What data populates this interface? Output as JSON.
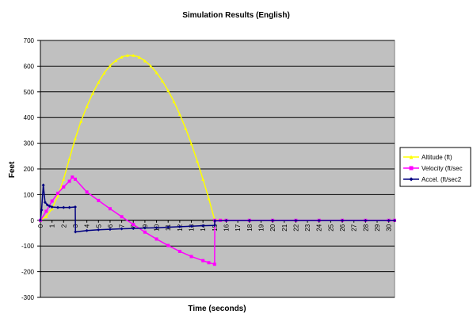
{
  "chart_data": {
    "type": "line",
    "title": "Simulation Results (English)",
    "xlabel": "Time (seconds)",
    "ylabel": "Feet",
    "xlim": [
      0,
      30.5
    ],
    "ylim": [
      -300,
      700
    ],
    "y_ticks": [
      -300,
      -200,
      -100,
      0,
      100,
      200,
      300,
      400,
      500,
      600,
      700
    ],
    "x_tick_labels": [
      "0",
      "1",
      "2",
      "3",
      "4",
      "5",
      "6",
      "7",
      "8",
      "9",
      "10",
      "11",
      "12",
      "13",
      "14",
      "15",
      "16",
      "17",
      "18",
      "19",
      "20",
      "21",
      "22",
      "23",
      "24",
      "25",
      "26",
      "27",
      "28",
      "29",
      "30"
    ],
    "grid": true,
    "legend_position": "right",
    "plot_background": "#C0C0C0",
    "series": [
      {
        "name": "Altitude (ft)",
        "color": "#FFFF00",
        "marker": "triangle",
        "x": [
          0,
          0.5,
          1,
          1.5,
          2,
          2.5,
          3,
          3.5,
          4,
          4.5,
          5,
          5.5,
          6,
          6.5,
          7,
          7.5,
          8,
          8.5,
          9,
          9.5,
          10,
          10.5,
          11,
          11.5,
          12,
          12.5,
          13,
          13.5,
          14,
          14.5,
          15,
          16,
          18,
          20,
          22,
          24,
          26,
          28,
          30,
          30.5
        ],
        "values": [
          0,
          15,
          45,
          95,
          160,
          240,
          318,
          386,
          443,
          494,
          537,
          574,
          602,
          622,
          636,
          642,
          642,
          635,
          621,
          601,
          575,
          543,
          505,
          462,
          413,
          358,
          298,
          231,
          160,
          85,
          2,
          0,
          0,
          0,
          0,
          0,
          0,
          0,
          0,
          0
        ]
      },
      {
        "name": "Velocity (ft/sec",
        "color": "#FF00FF",
        "marker": "square",
        "x": [
          0,
          0.5,
          1,
          1.5,
          2,
          2.5,
          2.75,
          3,
          4,
          5,
          6,
          7,
          8,
          9,
          10,
          11,
          12,
          13,
          14,
          14.5,
          15,
          15.02,
          15.5,
          16,
          18,
          20,
          22,
          24,
          26,
          28,
          30,
          30.5
        ],
        "values": [
          0,
          35,
          75,
          105,
          130,
          152,
          168,
          160,
          110,
          77,
          45,
          14,
          -16,
          -46,
          -73,
          -98,
          -121,
          -141,
          -157,
          -165,
          -171,
          0,
          0,
          0,
          0,
          0,
          0,
          0,
          0,
          0,
          0,
          0
        ]
      },
      {
        "name": "Accel. (ft/sec2",
        "color": "#000080",
        "marker": "diamond",
        "x": [
          0,
          0.1,
          0.25,
          0.4,
          0.6,
          0.8,
          1,
          1.5,
          2,
          2.5,
          3,
          3.02,
          4,
          5,
          6,
          7,
          8,
          9,
          10,
          11,
          12,
          13,
          14,
          15,
          15.02,
          16,
          18,
          20,
          22,
          24,
          26,
          28,
          30,
          30.5
        ],
        "values": [
          0,
          40,
          137,
          70,
          60,
          55,
          52,
          50,
          50,
          50,
          52,
          -45,
          -40,
          -37,
          -35,
          -33,
          -32,
          -30,
          -29,
          -27,
          -25,
          -23,
          -21,
          -20,
          -2,
          -1,
          -1,
          -1,
          -1,
          -1,
          -1,
          -1,
          -1,
          -1
        ]
      }
    ]
  }
}
